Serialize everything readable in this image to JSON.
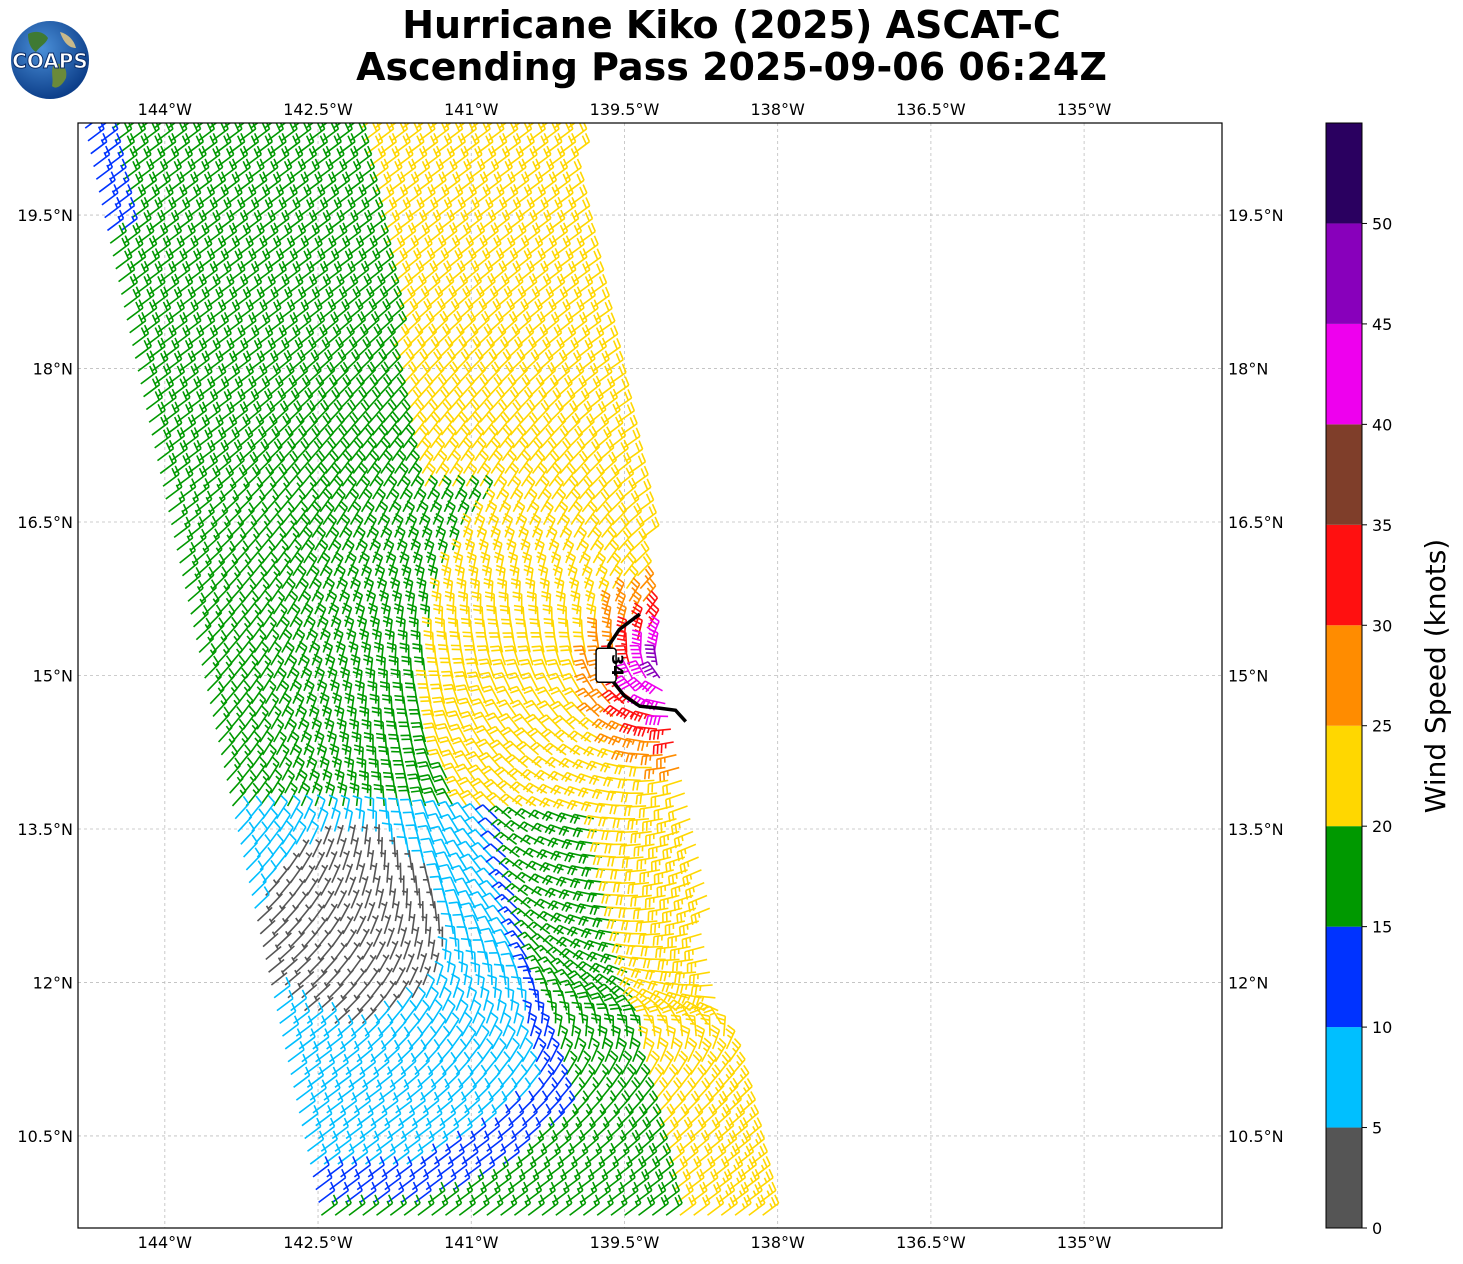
{
  "title": {
    "line1": "Hurricane Kiko (2025) ASCAT-C",
    "line2": "Ascending Pass 2025-09-06 06:24Z"
  },
  "logo": {
    "text": "COAPS",
    "icon": "globe-icon"
  },
  "map": {
    "lon_range": [
      -144.85,
      -133.65
    ],
    "lat_range": [
      9.6,
      20.4
    ],
    "lon_ticks": [
      {
        "value": -144.0,
        "label": "144°W"
      },
      {
        "value": -142.5,
        "label": "142.5°W"
      },
      {
        "value": -141.0,
        "label": "141°W"
      },
      {
        "value": -139.5,
        "label": "139.5°W"
      },
      {
        "value": -138.0,
        "label": "138°W"
      },
      {
        "value": -136.5,
        "label": "136.5°W"
      },
      {
        "value": -135.0,
        "label": "135°W"
      }
    ],
    "lat_ticks": [
      {
        "value": 19.5,
        "label": "19.5°N"
      },
      {
        "value": 18.0,
        "label": "18°N"
      },
      {
        "value": 16.5,
        "label": "16.5°N"
      },
      {
        "value": 15.0,
        "label": "15°N"
      },
      {
        "value": 13.5,
        "label": "13.5°N"
      },
      {
        "value": 12.0,
        "label": "12°N"
      },
      {
        "value": 10.5,
        "label": "10.5°N"
      }
    ],
    "gridlines": true,
    "contour_label": "34",
    "storm_center": {
      "lon": -138.9,
      "lat": 15.05
    },
    "swath": {
      "corners": [
        [
          -144.85,
          20.4
        ],
        [
          -140.0,
          20.4
        ],
        [
          -138.05,
          9.6
        ],
        [
          -142.5,
          9.6
        ]
      ]
    },
    "contour_34kt": [
      [
        -139.35,
        15.6
      ],
      [
        -139.55,
        15.45
      ],
      [
        -139.65,
        15.3
      ],
      [
        -139.68,
        15.1
      ],
      [
        -139.62,
        14.95
      ],
      [
        -139.5,
        14.8
      ],
      [
        -139.35,
        14.7
      ],
      [
        -139.15,
        14.68
      ],
      [
        -139.0,
        14.66
      ],
      [
        -138.9,
        14.55
      ]
    ]
  },
  "chart_data": {
    "type": "wind_barbs",
    "units": "knots",
    "colorbar": {
      "title": "Wind Speed (knots)",
      "levels": [
        0,
        5,
        10,
        15,
        20,
        25,
        30,
        35,
        40,
        45,
        50,
        55
      ],
      "tick_labels": [
        "0",
        "5",
        "10",
        "15",
        "20",
        "25",
        "30",
        "35",
        "40",
        "45",
        "50"
      ],
      "colors": [
        "#555555",
        "#00bfff",
        "#0033ff",
        "#009900",
        "#ffd700",
        "#ff8c00",
        "#ff1010",
        "#7f3e2a",
        "#ee00ee",
        "#8800bb",
        "#2a0060"
      ]
    }
  }
}
